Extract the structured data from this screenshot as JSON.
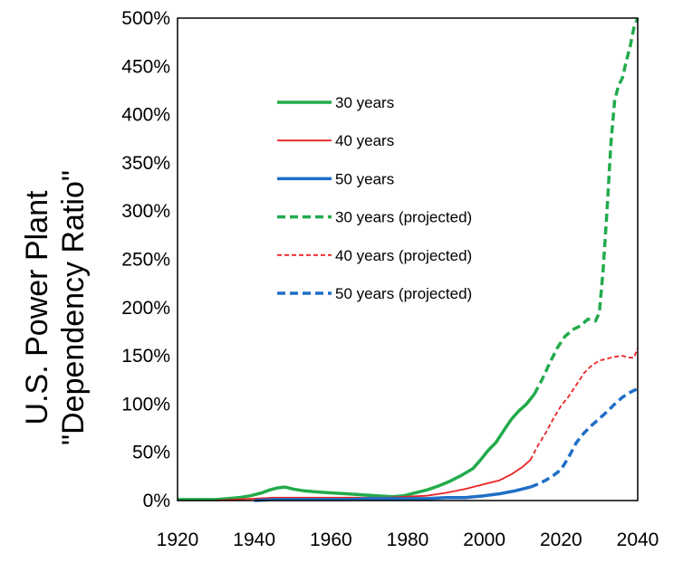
{
  "chart_data": {
    "type": "line",
    "ylabel_lines": [
      "U.S. Power Plant",
      "\"Dependency Ratio\""
    ],
    "xlim": [
      1920,
      2040
    ],
    "ylim": [
      0,
      500
    ],
    "x_ticks": [
      "1920",
      "1940",
      "1960",
      "1980",
      "2000",
      "2020",
      "2040"
    ],
    "y_ticks": [
      "0%",
      "50%",
      "100%",
      "150%",
      "200%",
      "250%",
      "300%",
      "350%",
      "400%",
      "450%",
      "500%"
    ],
    "grid": false,
    "legend": "upper-left inside plot",
    "series": [
      {
        "name": "30 years",
        "color": "#22ab4c",
        "dash": "solid",
        "width": 3.5,
        "points": [
          [
            1920,
            1
          ],
          [
            1925,
            1
          ],
          [
            1930,
            1
          ],
          [
            1933,
            2
          ],
          [
            1936,
            3
          ],
          [
            1939,
            5
          ],
          [
            1942,
            8
          ],
          [
            1944,
            11
          ],
          [
            1946,
            13
          ],
          [
            1948,
            14
          ],
          [
            1950,
            12
          ],
          [
            1953,
            10
          ],
          [
            1956,
            9
          ],
          [
            1960,
            8
          ],
          [
            1964,
            7
          ],
          [
            1968,
            6
          ],
          [
            1972,
            5
          ],
          [
            1976,
            4
          ],
          [
            1979,
            5
          ],
          [
            1982,
            8
          ],
          [
            1985,
            11
          ],
          [
            1988,
            15
          ],
          [
            1991,
            20
          ],
          [
            1994,
            26
          ],
          [
            1997,
            33
          ],
          [
            1999,
            42
          ],
          [
            2001,
            52
          ],
          [
            2003,
            60
          ],
          [
            2005,
            72
          ],
          [
            2007,
            84
          ],
          [
            2009,
            93
          ],
          [
            2011,
            100
          ],
          [
            2013,
            110
          ]
        ]
      },
      {
        "name": "40 years",
        "color": "#ee2222",
        "dash": "solid",
        "width": 1.8,
        "points": [
          [
            1930,
            0
          ],
          [
            1935,
            1
          ],
          [
            1940,
            2
          ],
          [
            1945,
            3
          ],
          [
            1950,
            3
          ],
          [
            1955,
            3
          ],
          [
            1960,
            3
          ],
          [
            1965,
            3
          ],
          [
            1970,
            3
          ],
          [
            1975,
            3
          ],
          [
            1980,
            4
          ],
          [
            1985,
            5
          ],
          [
            1990,
            8
          ],
          [
            1995,
            12
          ],
          [
            2000,
            17
          ],
          [
            2004,
            21
          ],
          [
            2007,
            27
          ],
          [
            2010,
            35
          ],
          [
            2012,
            42
          ]
        ]
      },
      {
        "name": "50 years",
        "color": "#1f6fc6",
        "dash": "solid",
        "width": 3.5,
        "points": [
          [
            1940,
            0
          ],
          [
            1945,
            1
          ],
          [
            1950,
            1
          ],
          [
            1955,
            1
          ],
          [
            1960,
            1
          ],
          [
            1965,
            1
          ],
          [
            1970,
            2
          ],
          [
            1975,
            2
          ],
          [
            1980,
            2
          ],
          [
            1985,
            2
          ],
          [
            1990,
            3
          ],
          [
            1995,
            3
          ],
          [
            2000,
            5
          ],
          [
            2004,
            7
          ],
          [
            2008,
            10
          ],
          [
            2012,
            14
          ]
        ]
      },
      {
        "name": "30 years (projected)",
        "color": "#22ab4c",
        "dash": "dashed",
        "width": 3.5,
        "points": [
          [
            2013,
            110
          ],
          [
            2015,
            125
          ],
          [
            2017,
            142
          ],
          [
            2019,
            158
          ],
          [
            2021,
            170
          ],
          [
            2023,
            177
          ],
          [
            2025,
            181
          ],
          [
            2027,
            188
          ],
          [
            2029,
            186
          ],
          [
            2030,
            195
          ],
          [
            2031,
            240
          ],
          [
            2032,
            300
          ],
          [
            2033,
            370
          ],
          [
            2034,
            415
          ],
          [
            2035,
            430
          ],
          [
            2036,
            438
          ],
          [
            2037,
            455
          ],
          [
            2038,
            470
          ],
          [
            2039,
            490
          ],
          [
            2040,
            500
          ]
        ]
      },
      {
        "name": "40 years (projected)",
        "color": "#ee2222",
        "dash": "dashed",
        "width": 1.8,
        "points": [
          [
            2012,
            42
          ],
          [
            2014,
            57
          ],
          [
            2016,
            70
          ],
          [
            2018,
            85
          ],
          [
            2020,
            98
          ],
          [
            2022,
            108
          ],
          [
            2024,
            120
          ],
          [
            2026,
            132
          ],
          [
            2028,
            140
          ],
          [
            2030,
            145
          ],
          [
            2032,
            147
          ],
          [
            2034,
            149
          ],
          [
            2036,
            150
          ],
          [
            2038,
            148
          ],
          [
            2039,
            148
          ],
          [
            2040,
            158
          ]
        ]
      },
      {
        "name": "50 years (projected)",
        "color": "#1f6fc6",
        "dash": "dashed",
        "width": 3.5,
        "points": [
          [
            2012,
            14
          ],
          [
            2014,
            17
          ],
          [
            2016,
            21
          ],
          [
            2018,
            26
          ],
          [
            2020,
            32
          ],
          [
            2022,
            45
          ],
          [
            2024,
            60
          ],
          [
            2026,
            70
          ],
          [
            2028,
            78
          ],
          [
            2030,
            85
          ],
          [
            2032,
            92
          ],
          [
            2034,
            100
          ],
          [
            2036,
            107
          ],
          [
            2038,
            112
          ],
          [
            2040,
            116
          ]
        ]
      }
    ]
  }
}
